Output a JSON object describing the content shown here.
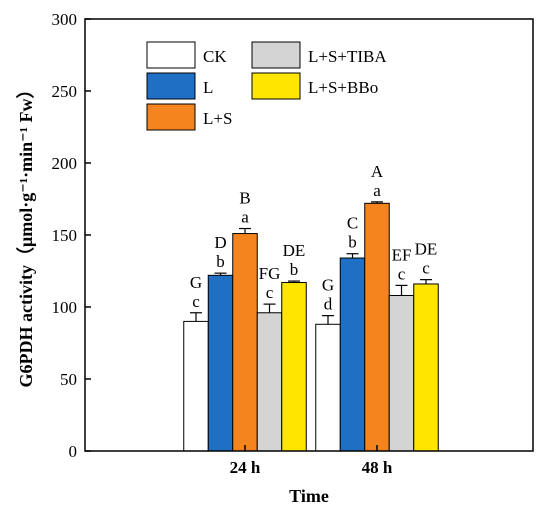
{
  "chart_data": {
    "type": "bar",
    "xlabel": "Time",
    "ylabel": "G6PDH activity（μmol·g⁻¹·min⁻¹ Fw）",
    "ylim": [
      0,
      300
    ],
    "yticks": [
      "0",
      "50",
      "100",
      "150",
      "200",
      "250",
      "300"
    ],
    "categories": [
      "24 h",
      "48 h"
    ],
    "series": [
      {
        "name": "CK",
        "color": "#ffffff",
        "values": [
          90,
          88
        ],
        "errors": [
          6,
          6
        ],
        "labels_upper": [
          "G",
          "G"
        ],
        "labels_lower": [
          "c",
          "d"
        ]
      },
      {
        "name": "L",
        "color": "#1f6fc5",
        "values": [
          122,
          134
        ],
        "errors": [
          1.5,
          3
        ],
        "labels_upper": [
          "D",
          "C"
        ],
        "labels_lower": [
          "b",
          "b"
        ]
      },
      {
        "name": "L+S",
        "color": "#f5841f",
        "values": [
          151,
          172
        ],
        "errors": [
          3.5,
          1
        ],
        "labels_upper": [
          "B",
          "A"
        ],
        "labels_lower": [
          "a",
          "a"
        ]
      },
      {
        "name": "L+S+TIBA",
        "color": "#d4d4d4",
        "values": [
          96,
          108
        ],
        "errors": [
          6,
          7
        ],
        "labels_upper": [
          "FG",
          "EF"
        ],
        "labels_lower": [
          "c",
          "c"
        ]
      },
      {
        "name": "L+S+BBo",
        "color": "#ffe600",
        "values": [
          117,
          116
        ],
        "errors": [
          1,
          3
        ],
        "labels_upper": [
          "DE",
          "DE"
        ],
        "labels_lower": [
          "b",
          "c"
        ]
      }
    ],
    "legend_position": "top-left",
    "grid": false
  }
}
